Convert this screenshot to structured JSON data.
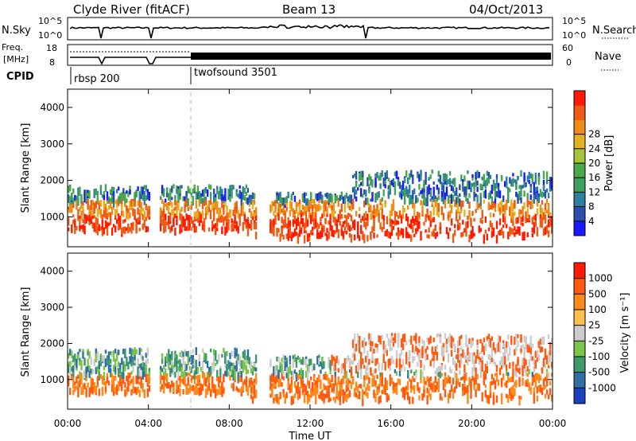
{
  "header": {
    "title": "Clyde River (fitACF)",
    "beam": "Beam 13",
    "date": "04/Oct/2013"
  },
  "nsky_panel": {
    "left_label": "N.Sky",
    "right_label": "N.Search",
    "left_ticks": [
      "10^5",
      "10^0"
    ],
    "right_ticks": [
      "10^5",
      "10^0"
    ]
  },
  "freq_panel": {
    "left_label_line1": "Freq.",
    "left_label_line2": "[MHz]",
    "right_label": "Nave",
    "left_ticks": [
      "18",
      "8"
    ],
    "right_ticks": [
      "60",
      "0"
    ]
  },
  "cpid": {
    "label": "CPID",
    "modes": [
      "rbsp 200",
      "twofsound 3501"
    ]
  },
  "chart_data": [
    {
      "type": "heatmap",
      "ylabel": "Slant Range [km]",
      "y_ticks": [
        "1000",
        "2000",
        "3000",
        "4000"
      ],
      "x_ticks": [
        "00:00",
        "04:00",
        "08:00",
        "12:00",
        "16:00",
        "20:00",
        "00:00"
      ],
      "xlim_hours": [
        0,
        24
      ],
      "ylim_km": [
        180,
        4500
      ],
      "colorbar_label": "Power [dB]",
      "colorbar_ticks": [
        "4",
        "8",
        "12",
        "16",
        "20",
        "24",
        "28"
      ],
      "colors": [
        "#1a1aff",
        "#2a4fae",
        "#2f7fa0",
        "#3f9f5f",
        "#4aa94a",
        "#a6c43a",
        "#e6b020",
        "#f08a18",
        "#ef5a14",
        "#ff1a00"
      ]
    },
    {
      "type": "heatmap",
      "ylabel": "Slant Range [km]",
      "y_ticks": [
        "1000",
        "2000",
        "3000",
        "4000"
      ],
      "x_ticks": [
        "00:00",
        "04:00",
        "08:00",
        "12:00",
        "16:00",
        "20:00",
        "00:00"
      ],
      "xlim_hours": [
        0,
        24
      ],
      "ylim_km": [
        180,
        4500
      ],
      "xlabel": "Time UT",
      "colorbar_label": "Velocity [m s⁻¹]",
      "colorbar_ticks": [
        "1000",
        "500",
        "100",
        "25",
        "-25",
        "-100",
        "-500",
        "-1000"
      ],
      "colors": [
        "#1a3fbf",
        "#2f6fa6",
        "#3d9a6a",
        "#7bc64a",
        "#cccccc",
        "#ffc04a",
        "#ff8a1a",
        "#ff5a10",
        "#ff1a00"
      ]
    }
  ]
}
